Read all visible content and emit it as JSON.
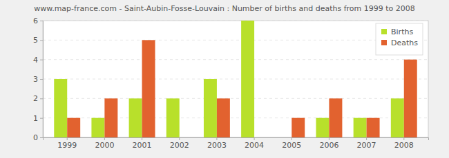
{
  "chart_data": {
    "type": "bar",
    "title": "www.map-france.com - Saint-Aubin-Fosse-Louvain : Number of births and deaths from 1999 to 2008",
    "categories": [
      "1999",
      "2000",
      "2001",
      "2002",
      "2003",
      "2004",
      "2005",
      "2006",
      "2007",
      "2008"
    ],
    "series": [
      {
        "name": "Births",
        "color": "#b8e02b",
        "values": [
          3,
          1,
          2,
          2,
          3,
          6,
          0,
          1,
          1,
          2
        ]
      },
      {
        "name": "Deaths",
        "color": "#e2622f",
        "values": [
          1,
          2,
          5,
          0,
          2,
          0,
          1,
          2,
          1,
          4
        ]
      }
    ],
    "ylim": [
      0,
      6
    ],
    "yticks": [
      0,
      1,
      2,
      3,
      4,
      5,
      6
    ],
    "grid": true,
    "legend": "top-right"
  }
}
